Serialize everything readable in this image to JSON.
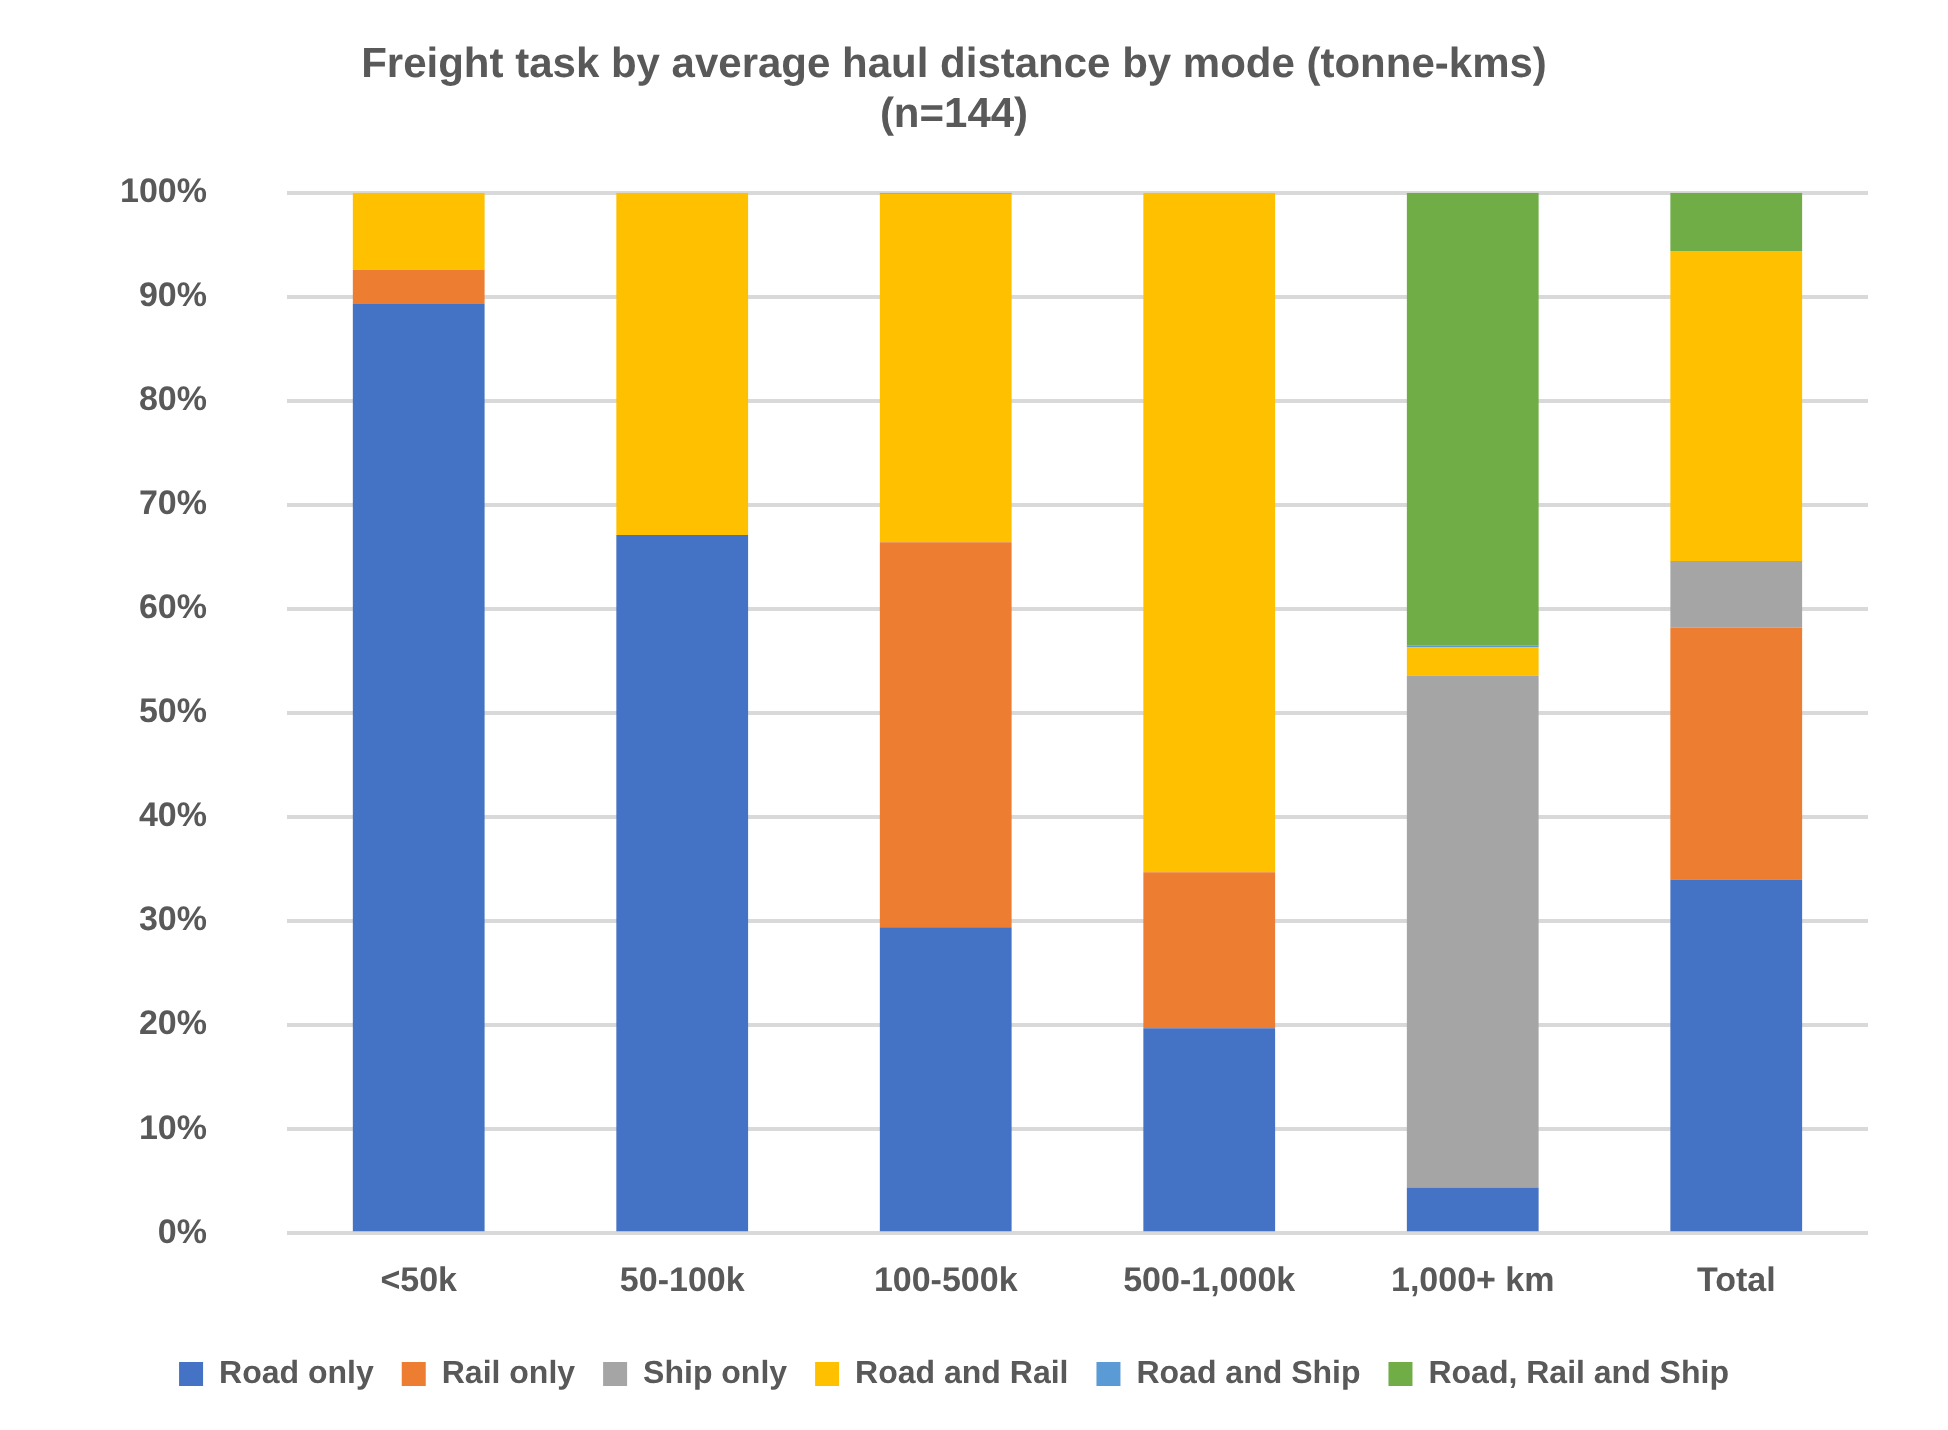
{
  "chart_data": {
    "type": "bar",
    "stacked": true,
    "title": [
      "Freight task by average haul distance by mode (tonne-kms)",
      "(n=144)"
    ],
    "categories": [
      "<50k",
      "50-100k",
      "100-500k",
      "500-1,000k",
      "1,000+ km",
      "Total"
    ],
    "series": [
      {
        "name": "Road only",
        "color": "#4472c4",
        "values": [
          89.3,
          67.1,
          29.4,
          19.7,
          4.4,
          34.0
        ]
      },
      {
        "name": "Rail only",
        "color": "#ed7d31",
        "values": [
          3.3,
          0,
          37.0,
          15.0,
          0,
          24.2
        ]
      },
      {
        "name": "Ship only",
        "color": "#a5a5a5",
        "values": [
          0,
          0,
          0,
          0,
          49.2,
          6.4
        ]
      },
      {
        "name": "Road and Rail",
        "color": "#ffc000",
        "values": [
          7.4,
          32.9,
          33.5,
          65.3,
          2.7,
          29.8
        ]
      },
      {
        "name": "Road and Ship",
        "color": "#5b9bd5",
        "values": [
          0,
          0,
          0.1,
          0,
          0.2,
          0
        ]
      },
      {
        "name": "Road, Rail and Ship",
        "color": "#70ad47",
        "values": [
          0,
          0,
          0,
          0,
          43.5,
          5.6
        ]
      }
    ],
    "ylim": [
      0,
      100
    ],
    "yticks": [
      {
        "value": 0,
        "label": "0%"
      },
      {
        "value": 10,
        "label": "10%"
      },
      {
        "value": 20,
        "label": "20%"
      },
      {
        "value": 30,
        "label": "30%"
      },
      {
        "value": 40,
        "label": "40%"
      },
      {
        "value": 50,
        "label": "50%"
      },
      {
        "value": 60,
        "label": "60%"
      },
      {
        "value": 70,
        "label": "70%"
      },
      {
        "value": 80,
        "label": "80%"
      },
      {
        "value": 90,
        "label": "90%"
      },
      {
        "value": 100,
        "label": "100%"
      }
    ],
    "grid": "y",
    "legend": "bottom"
  }
}
